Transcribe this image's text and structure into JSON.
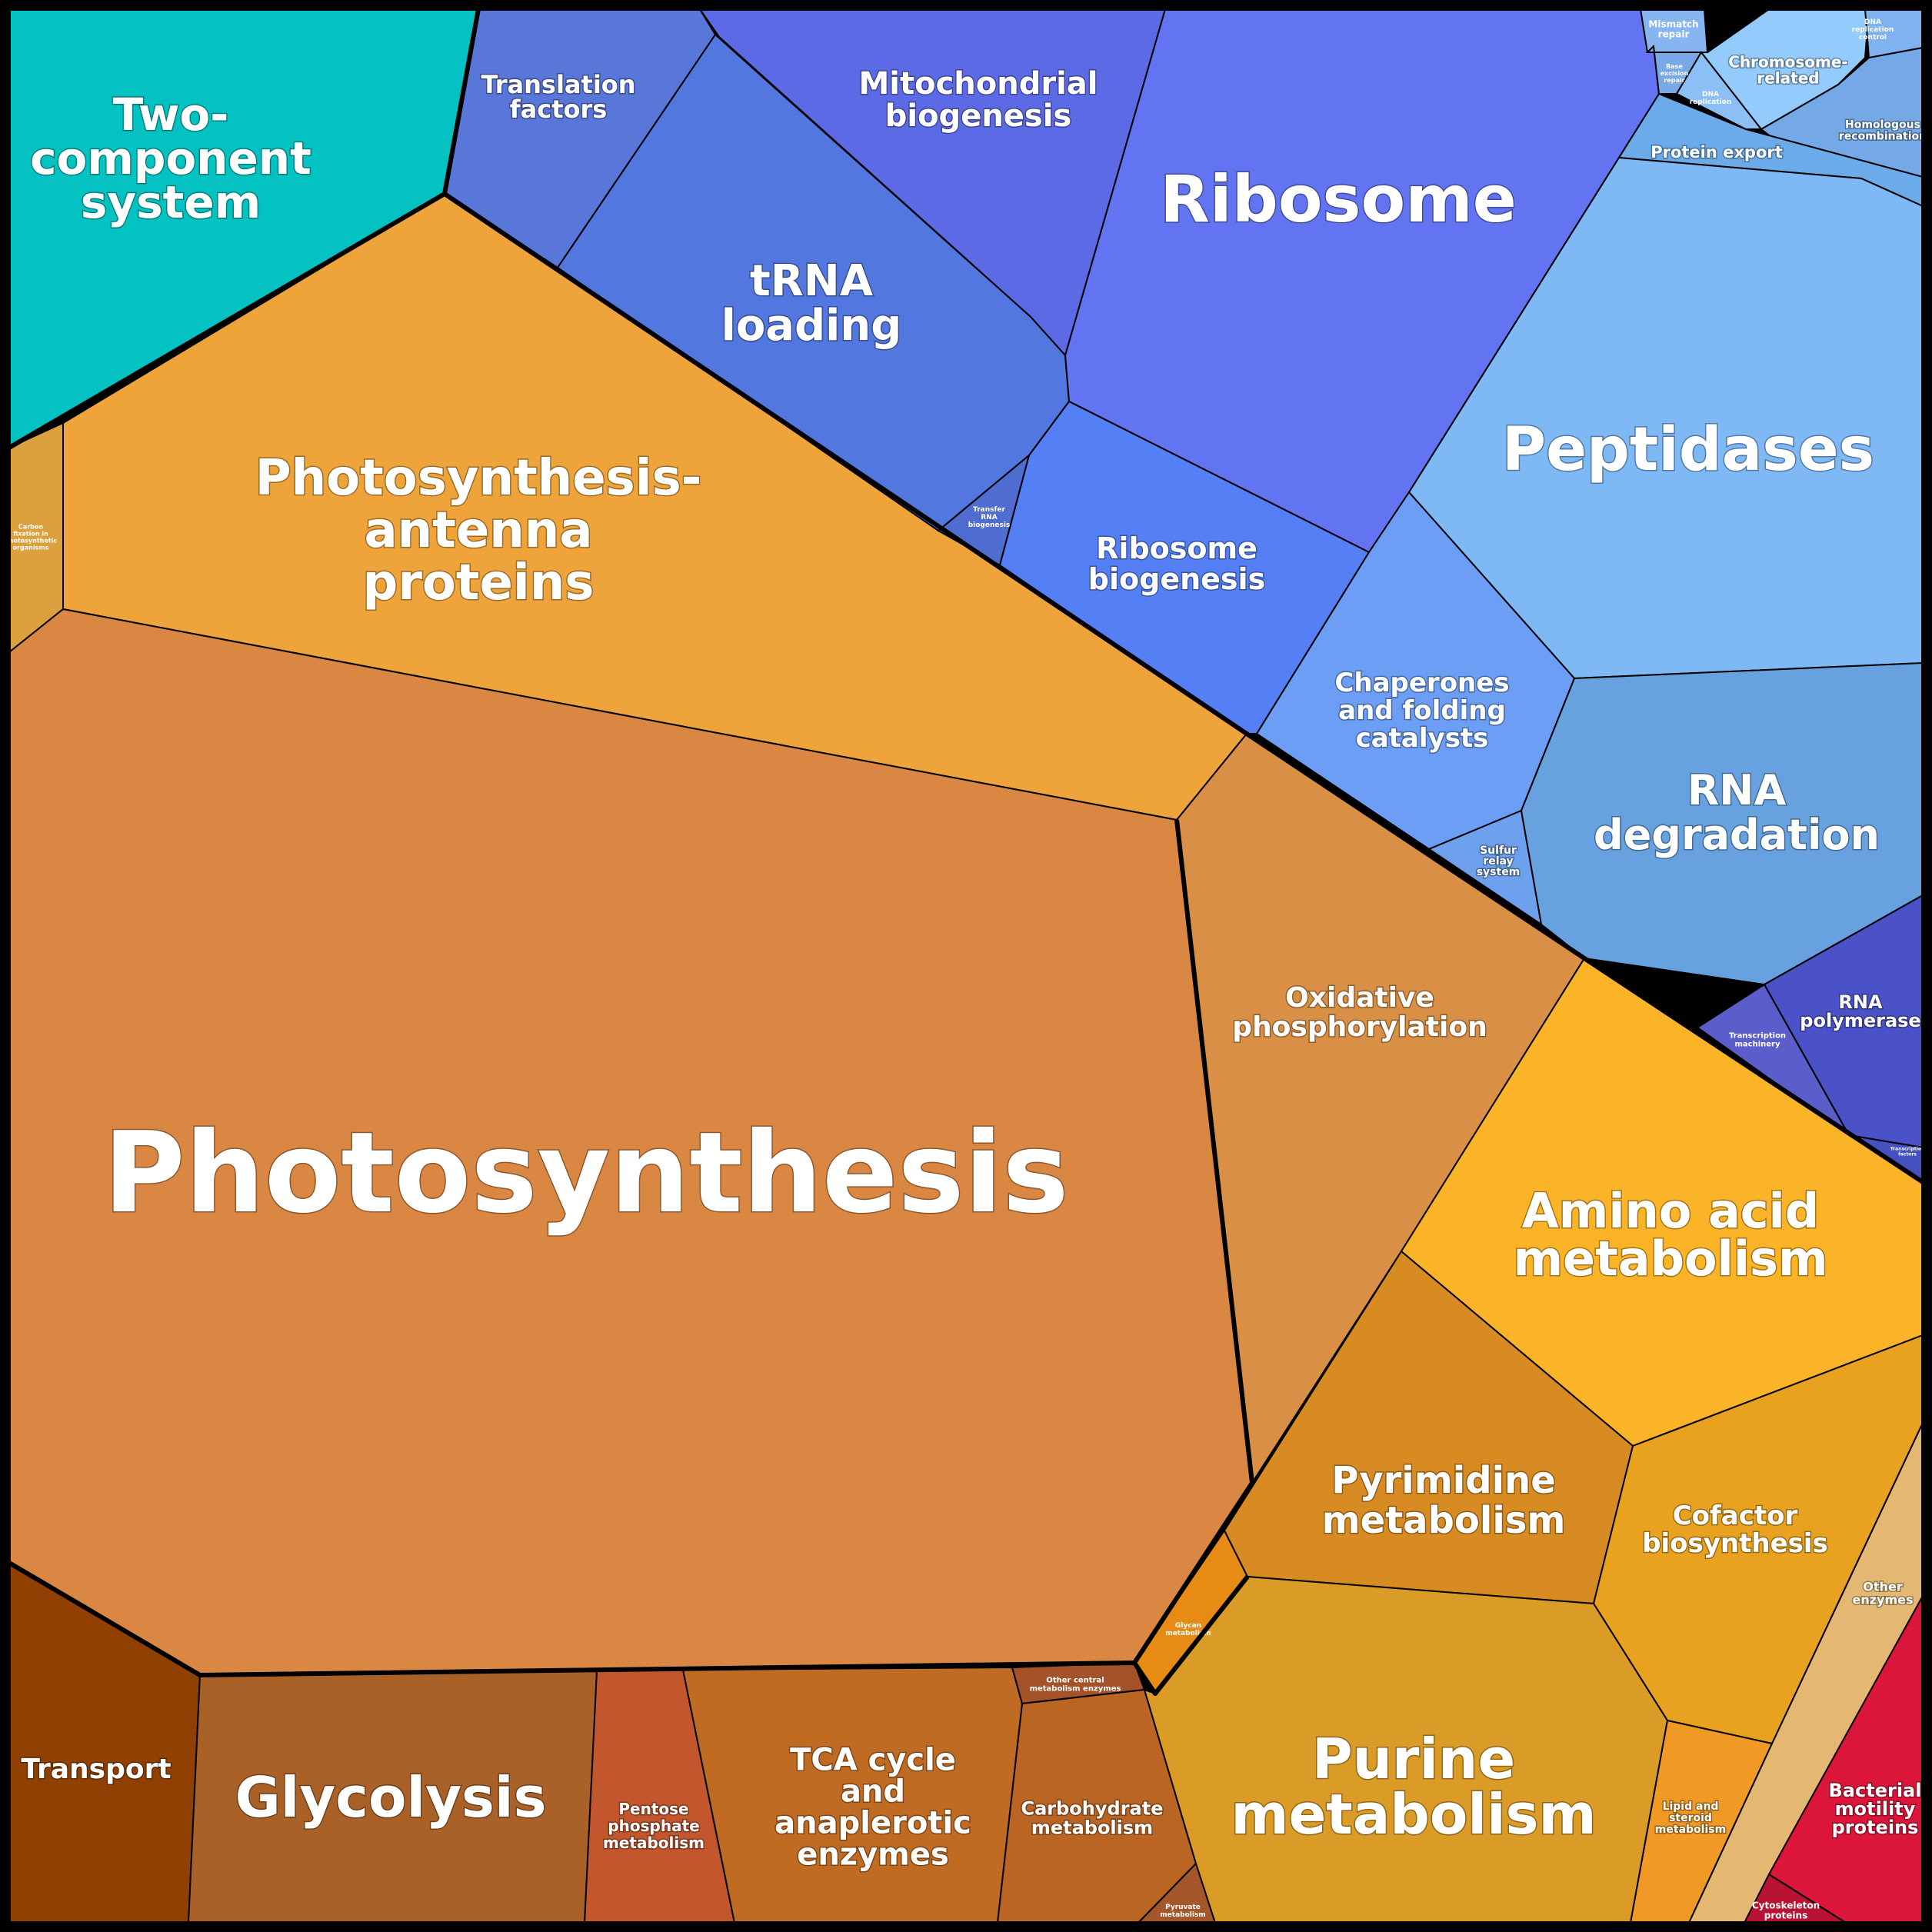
{
  "cells": [
    {
      "id": "two-component-system",
      "label": "Two-\ncomponent\nsystem",
      "color": "#04C2C1"
    },
    {
      "id": "photosynthesis-antenna-proteins",
      "label": "Photosynthesis-\nantenna\nproteins",
      "color": "#EEA43A"
    },
    {
      "id": "carbon-fixation",
      "label": "Carbon\nfixation in\nphotosynthetic\norganisms",
      "color": "#DCA13E"
    },
    {
      "id": "photosynthesis",
      "label": "Photosynthesis",
      "color": "#DB8744"
    },
    {
      "id": "oxidative-phosphorylation",
      "label": "Oxidative\nphosphorylation",
      "color": "#D98F45"
    },
    {
      "id": "transport",
      "label": "Transport",
      "color": "#914003"
    },
    {
      "id": "glycolysis",
      "label": "Glycolysis",
      "color": "#AA6128"
    },
    {
      "id": "pentose-phosphate-metabolism",
      "label": "Pentose\nphosphate\nmetabolism",
      "color": "#C4562E"
    },
    {
      "id": "tca-cycle",
      "label": "TCA cycle\nand\nanaplerotic\nenzymes",
      "color": "#C06B23"
    },
    {
      "id": "other-central-metabolism-enzymes",
      "label": "Other central\nmetabolism enzymes",
      "color": "#A4522A"
    },
    {
      "id": "carbohydrate-metabolism",
      "label": "Carbohydrate\nmetabolism",
      "color": "#BA6524"
    },
    {
      "id": "pyruvate-metabolism",
      "label": "Pyruvate\nmetabolism",
      "color": "#A5562A"
    },
    {
      "id": "glycan-metabolism",
      "label": "Glycan\nmetabolism",
      "color": "#E78B15"
    },
    {
      "id": "amino-acid-metabolism",
      "label": "Amino acid\nmetabolism",
      "color": "#FBB328"
    },
    {
      "id": "pyrimidine-metabolism",
      "label": "Pyrimidine\nmetabolism",
      "color": "#D88B22"
    },
    {
      "id": "cofactor-biosynthesis",
      "label": "Cofactor\nbiosynthesis",
      "color": "#E8A21F"
    },
    {
      "id": "purine-metabolism",
      "label": "Purine\nmetabolism",
      "color": "#DA9C27"
    },
    {
      "id": "lipid-and-steroid-metabolism",
      "label": "Lipid and\nsteroid\nmetabolism",
      "color": "#F09925"
    },
    {
      "id": "other-enzymes",
      "label": "Other\nenzymes",
      "color": "#E4B872"
    },
    {
      "id": "bacterial-motility-proteins",
      "label": "Bacterial\nmotility\nproteins",
      "color": "#DC153B"
    },
    {
      "id": "cytoskeleton-proteins",
      "label": "Cytoskeleton\nproteins",
      "color": "#B81332"
    },
    {
      "id": "translation-factors",
      "label": "Translation\nfactors",
      "color": "#5976D9"
    },
    {
      "id": "mitochondrial-biogenesis",
      "label": "Mitochondrial\nbiogenesis",
      "color": "#5C6AE6"
    },
    {
      "id": "trna-loading",
      "label": "tRNA\nloading",
      "color": "#5277DE"
    },
    {
      "id": "transfer-rna-biogenesis",
      "label": "Transfer\nRNA\nbiogenesis",
      "color": "#4F6CD0"
    },
    {
      "id": "ribosome",
      "label": "Ribosome",
      "color": "#6274F1"
    },
    {
      "id": "ribosome-biogenesis",
      "label": "Ribosome\nbiogenesis",
      "color": "#557FF5"
    },
    {
      "id": "mismatch-repair",
      "label": "Mismatch\nrepair",
      "color": "#86B5F0"
    },
    {
      "id": "base-excision-repair",
      "label": "Base\nexcision\nrepair",
      "color": "#7AA9E8"
    },
    {
      "id": "dna-replication",
      "label": "DNA\nreplication",
      "color": "#8BBFF6"
    },
    {
      "id": "chromosome-related",
      "label": "Chromosome-\nrelated",
      "color": "#93CCFC"
    },
    {
      "id": "dna-replication-control",
      "label": "DNA\nreplication\ncontrol",
      "color": "#80B2EF"
    },
    {
      "id": "homologous-recombination",
      "label": "Homologous\nrecombination",
      "color": "#74A8E6"
    },
    {
      "id": "protein-export",
      "label": "Protein export",
      "color": "#6CABE9"
    },
    {
      "id": "peptidases",
      "label": "Peptidases",
      "color": "#7EB9F6"
    },
    {
      "id": "chaperones-and-folding-catalysts",
      "label": "Chaperones\nand folding\ncatalysts",
      "color": "#6C9EF5"
    },
    {
      "id": "sulfur-relay-system",
      "label": "Sulfur\nrelay\nsystem",
      "color": "#6DA1EE"
    },
    {
      "id": "rna-degradation",
      "label": "RNA\ndegradation",
      "color": "#67A1DF"
    },
    {
      "id": "transcription-machinery",
      "label": "Transcription\nmachinery",
      "color": "#5A5DCA"
    },
    {
      "id": "rna-polymerase",
      "label": "RNA\npolymerase",
      "color": "#4B52C8"
    },
    {
      "id": "transcription-factors",
      "label": "Transcription\nfactors",
      "color": "#4551C0"
    }
  ]
}
